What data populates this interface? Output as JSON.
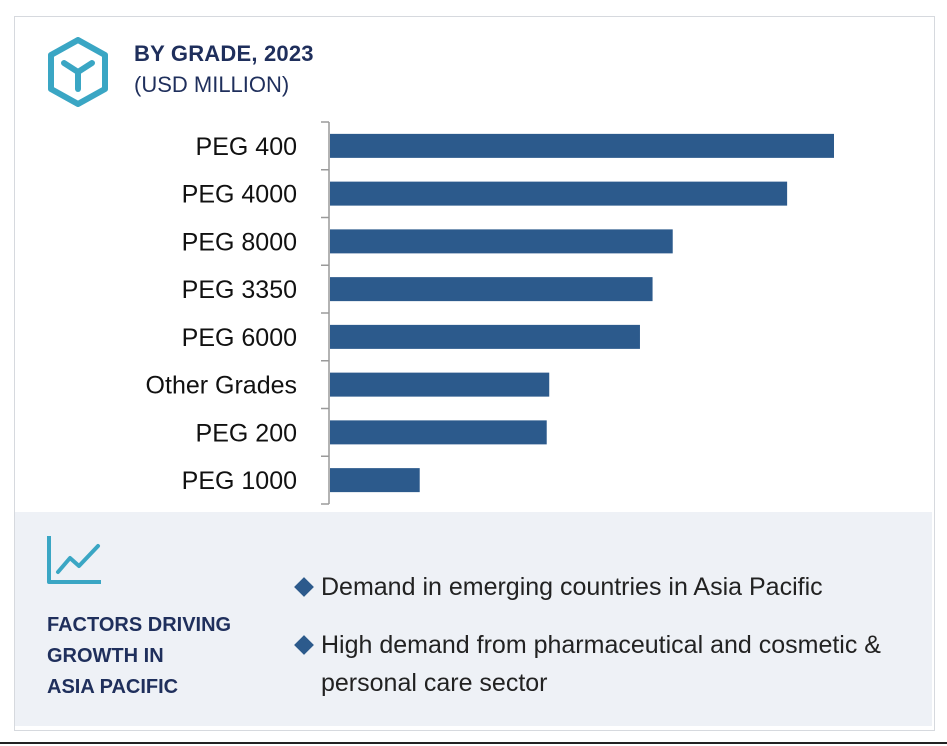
{
  "header": {
    "title": "BY GRADE, 2023",
    "subtitle": "(USD MILLION)",
    "icon": "hexagon-y-icon"
  },
  "colors": {
    "bar": "#2c5a8c",
    "accent": "#3aa6c4",
    "heading": "#1f2f5c",
    "panel_bg": "#eef1f6"
  },
  "chart_data": {
    "type": "bar",
    "orientation": "horizontal",
    "categories": [
      "PEG 400",
      "PEG 4000",
      "PEG 8000",
      "PEG 3350",
      "PEG 6000",
      "Other Grades",
      "PEG 200",
      "PEG 1000"
    ],
    "values": [
      100,
      90.7,
      68,
      64,
      61.5,
      43.5,
      43,
      17.8
    ],
    "value_axis_range": [
      0,
      100
    ],
    "value_scale_note": "relative bar lengths; no value axis shown",
    "grid": false,
    "legend": "none"
  },
  "factors": {
    "icon": "line-chart-icon",
    "heading_lines": [
      "FACTORS DRIVING",
      "GROWTH IN",
      "ASIA PACIFIC"
    ],
    "bullets": [
      "Demand in emerging countries in Asia Pacific",
      "High demand from pharmaceutical and cosmetic & personal care sector"
    ]
  }
}
